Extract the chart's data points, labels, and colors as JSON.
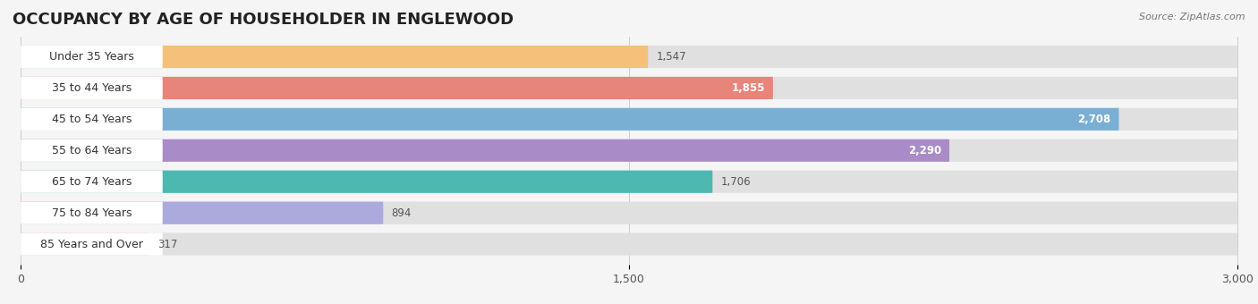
{
  "title": "OCCUPANCY BY AGE OF HOUSEHOLDER IN ENGLEWOOD",
  "source": "Source: ZipAtlas.com",
  "categories": [
    "Under 35 Years",
    "35 to 44 Years",
    "45 to 54 Years",
    "55 to 64 Years",
    "65 to 74 Years",
    "75 to 84 Years",
    "85 Years and Over"
  ],
  "values": [
    1547,
    1855,
    2708,
    2290,
    1706,
    894,
    317
  ],
  "bar_colors": [
    "#F5C07A",
    "#E8857A",
    "#7AAFD4",
    "#A98BC8",
    "#4DB8B0",
    "#AAAADD",
    "#F4AABB"
  ],
  "xlim_min": 0,
  "xlim_max": 3000,
  "xticks": [
    0,
    1500,
    3000
  ],
  "xtick_labels": [
    "0",
    "1,500",
    "3,000"
  ],
  "background_color": "#f5f5f5",
  "bar_bg_color": "#e0e0e0",
  "white_label_bg": "#ffffff",
  "title_fontsize": 13,
  "label_fontsize": 9,
  "value_fontsize": 8.5,
  "source_fontsize": 8,
  "value_threshold": 1800
}
